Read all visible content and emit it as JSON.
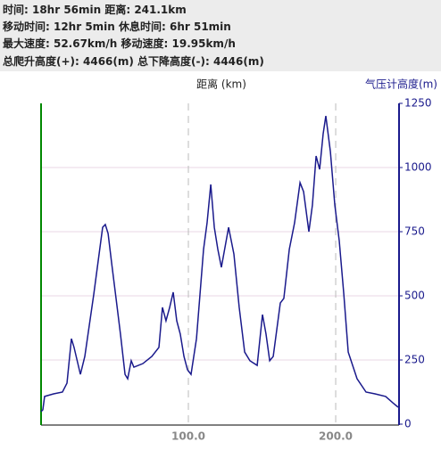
{
  "header": {
    "lines": [
      "时间: 18hr 56min  距离: 241.1km",
      "移动时间: 12hr 5min  休息时间: 6hr 51min",
      "最大速度: 52.67km/h  移动速度: 19.95km/h",
      "总爬升高度(+): 4466(m)  总下降高度(-): 4446(m)"
    ]
  },
  "chart_data": {
    "type": "line",
    "x_label": "距离 (km)",
    "y_label": "气压计高度(m)",
    "x": [
      0,
      1.2,
      2.4,
      8.5,
      14.5,
      17.6,
      20.6,
      22.4,
      26.7,
      29.7,
      35.8,
      41.8,
      43.6,
      45.5,
      47.9,
      50.9,
      53.9,
      57.0,
      58.8,
      61.2,
      63.0,
      69.1,
      75.2,
      80.0,
      82.4,
      84.8,
      87.3,
      89.7,
      92.1,
      94.5,
      97.0,
      99.4,
      101.8,
      105.5,
      110.3,
      112.7,
      115.2,
      117.6,
      120.0,
      122.4,
      127.3,
      130.9,
      134.5,
      138.2,
      141.8,
      146.7,
      150.3,
      152.7,
      155.2,
      157.6,
      160.0,
      162.4,
      164.8,
      168.5,
      172.1,
      175.8,
      178.2,
      181.8,
      184.2,
      186.7,
      189.1,
      191.5,
      193.3,
      196.4,
      199.4,
      202.4,
      205.5,
      208.5,
      214.5,
      220.6,
      226.7,
      233.9,
      238.8,
      242.4
    ],
    "series": [
      {
        "name": "气压计高度",
        "color": "#1a1a8c",
        "axis": "y2",
        "values": [
          49,
          56,
          108,
          118,
          125,
          160,
          333,
          299,
          194,
          264,
          507,
          767,
          778,
          743,
          628,
          490,
          351,
          194,
          177,
          247,
          222,
          236,
          264,
          299,
          455,
          403,
          455,
          514,
          403,
          351,
          264,
          212,
          194,
          333,
          681,
          785,
          934,
          767,
          681,
          611,
          767,
          663,
          455,
          281,
          247,
          229,
          427,
          351,
          247,
          264,
          368,
          472,
          490,
          681,
          785,
          941,
          906,
          750,
          854,
          1045,
          993,
          1132,
          1201,
          1062,
          854,
          715,
          507,
          281,
          177,
          125,
          118,
          108,
          83,
          66
        ]
      }
    ],
    "xlim": [
      0,
      243
    ],
    "xticks": [
      {
        "value": 100,
        "label": "100.0"
      },
      {
        "value": 200,
        "label": "200.0"
      }
    ],
    "y2lim": [
      0,
      1250
    ],
    "y2ticks": [
      0,
      250,
      500,
      750,
      1000,
      1250
    ]
  }
}
